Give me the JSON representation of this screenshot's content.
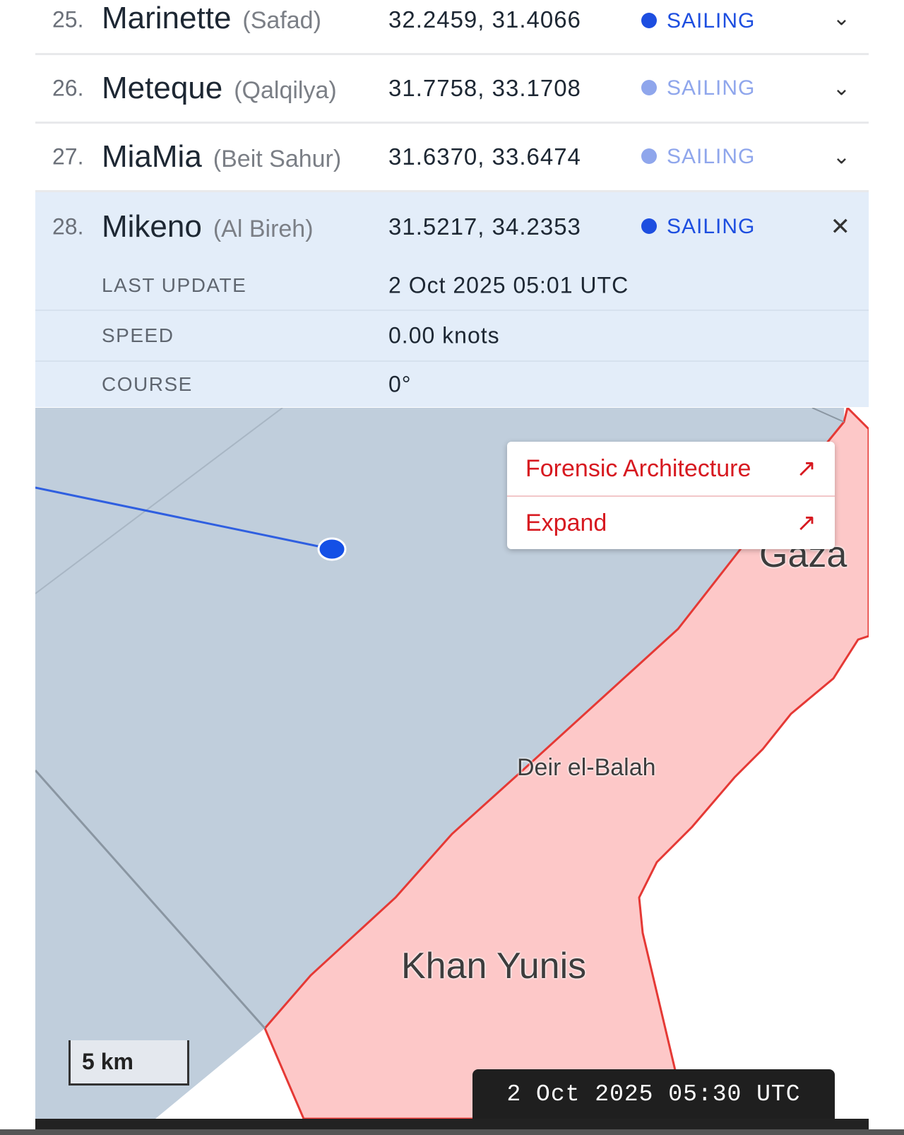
{
  "vessels": [
    {
      "index": "25.",
      "name": "Marinette",
      "city": "(Safad)",
      "coords": "32.2459, 31.4066",
      "status": "SAILING",
      "status_color": "#1d4ee0",
      "expanded": false
    },
    {
      "index": "26.",
      "name": "Meteque",
      "city": "(Qalqilya)",
      "coords": "31.7758, 33.1708",
      "status": "SAILING",
      "status_color": "#8fa6ec",
      "expanded": false
    },
    {
      "index": "27.",
      "name": "MiaMia",
      "city": "(Beit Sahur)",
      "coords": "31.6370, 33.6474",
      "status": "SAILING",
      "status_color": "#8fa6ec",
      "expanded": false
    },
    {
      "index": "28.",
      "name": "Mikeno",
      "city": "(Al Bireh)",
      "coords": "31.5217, 34.2353",
      "status": "SAILING",
      "status_color": "#1d4ee0",
      "expanded": true
    }
  ],
  "details": [
    {
      "label": "LAST UPDATE",
      "value": "2 Oct 2025 05:01 UTC"
    },
    {
      "label": "SPEED",
      "value": "0.00 knots"
    },
    {
      "label": "COURSE",
      "value": "0°"
    }
  ],
  "map": {
    "popup": [
      {
        "label": "Forensic Architecture",
        "icon": "arrow-up-right-icon"
      },
      {
        "label": "Expand",
        "icon": "arrow-up-right-icon"
      }
    ],
    "places": [
      "Gaza",
      "Deir el-Balah",
      "Khan Yunis"
    ],
    "scale": "5 km",
    "timestamp": "2 Oct 2025 05:30 UTC",
    "colors": {
      "sea": "#c0cedc",
      "land_zone": "#fdc8c8",
      "border": "#e53935",
      "track": "#2f5fe0"
    }
  }
}
